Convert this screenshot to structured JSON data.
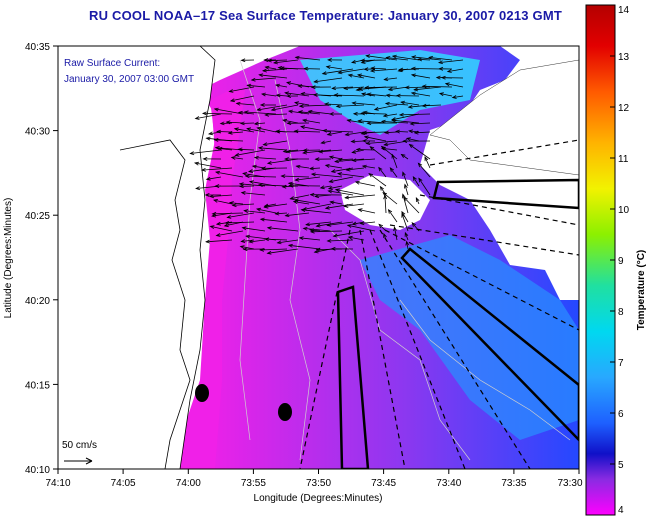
{
  "title": "RU COOL  NOAA–17  Sea Surface Temperature:  January 30, 2007 0213 GMT",
  "overlay": {
    "line1": "Raw Surface Current:",
    "line2": "January 30, 2007 03:00 GMT"
  },
  "scale_label": "50 cm/s",
  "x_axis": {
    "label": "Longitude (Degrees:Minutes)",
    "ticks": [
      "74:10",
      "74:05",
      "74:00",
      "73:55",
      "73:50",
      "73:45",
      "73:40",
      "73:35",
      "73:30"
    ]
  },
  "y_axis": {
    "label": "Latitude (Degrees:Minutes)",
    "ticks": [
      "40:35",
      "40:30",
      "40:25",
      "40:20",
      "40:15",
      "40:10"
    ]
  },
  "colorbar": {
    "label": "Temperature (°C)",
    "ticks": [
      "14",
      "13",
      "12",
      "11",
      "10",
      "9",
      "8",
      "7",
      "6",
      "5",
      "4"
    ],
    "colors": [
      "#b40000",
      "#e20000",
      "#ff5a00",
      "#ffb300",
      "#f2f200",
      "#8cf000",
      "#20e0a0",
      "#00d8f0",
      "#28a8ff",
      "#1e60ff",
      "#1010c8",
      "#8a2be2",
      "#ff00ff"
    ]
  },
  "ocean_colors": {
    "magenta": "#f020e8",
    "purple": "#8a38f0",
    "blue": "#2448ff",
    "mid": "#2a8cff",
    "cyan": "#30d8ff"
  }
}
